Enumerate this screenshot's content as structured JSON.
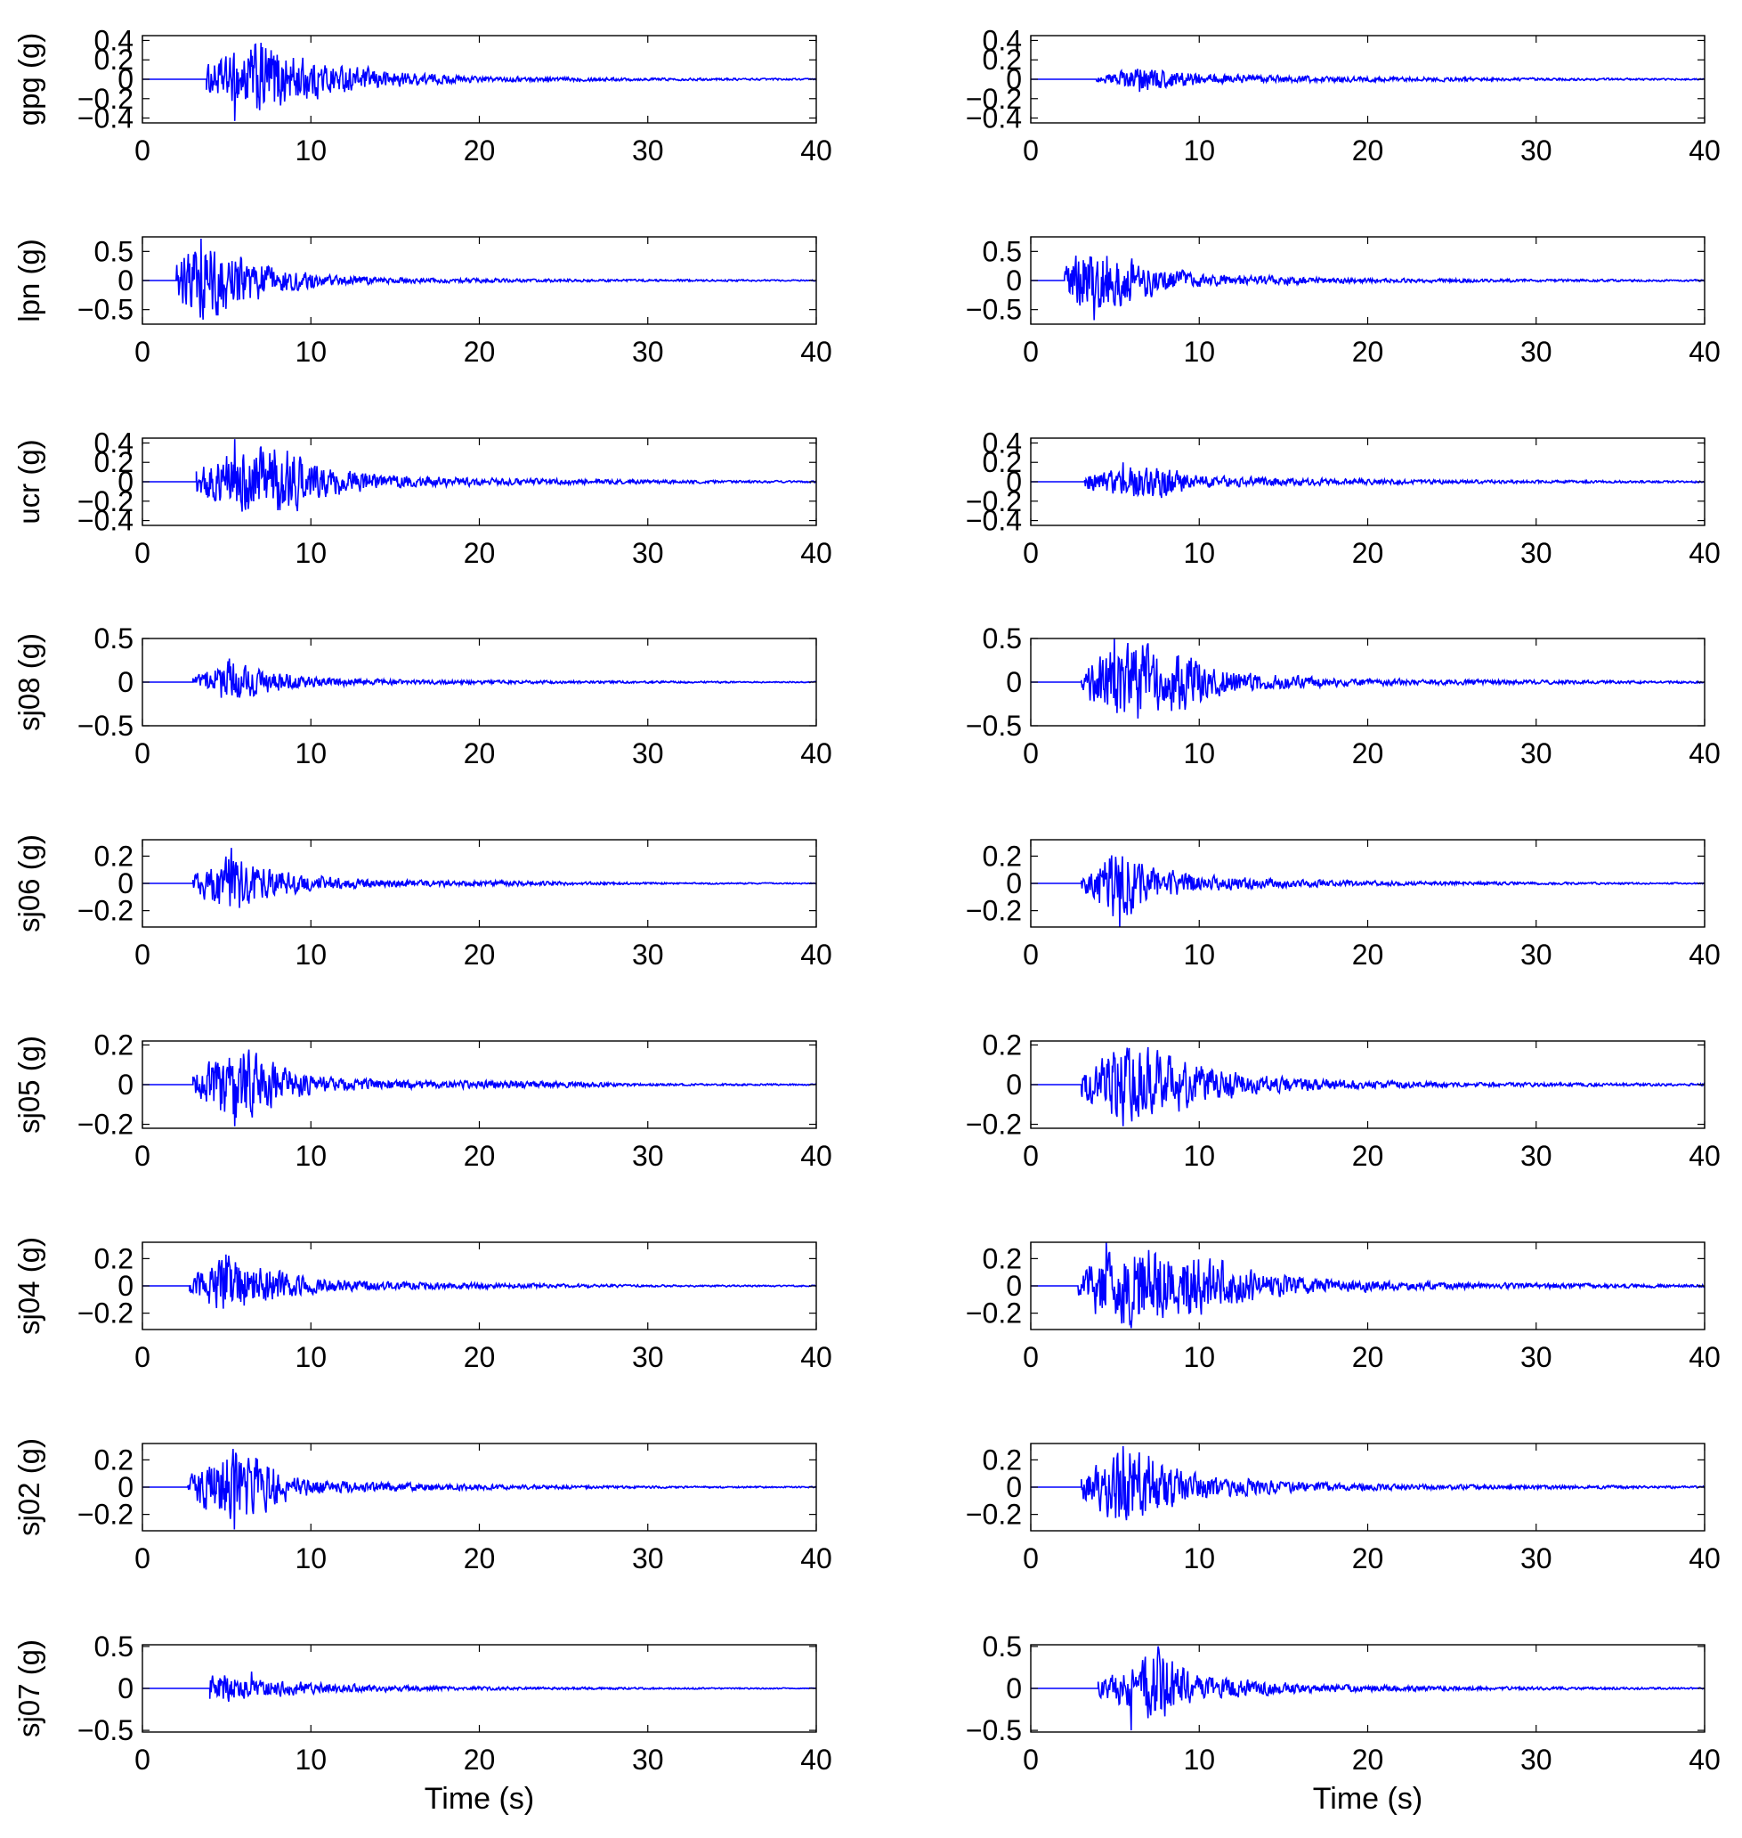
{
  "figure": {
    "trace_color": "#0000ff",
    "axis_color": "#000000",
    "background": "#ffffff"
  },
  "chart_data": [
    {
      "type": "line",
      "row": 0,
      "col": 0,
      "ylabel": "gpg (g)",
      "xlabel": "",
      "xlim": [
        0,
        40
      ],
      "ylim": [
        -0.45,
        0.45
      ],
      "xticks": [
        0,
        10,
        20,
        30,
        40
      ],
      "yticks": [
        -0.4,
        -0.2,
        0,
        0.2,
        0.4
      ],
      "ytick_labels": [
        "−0.4",
        "−0.2",
        "0",
        "0.2",
        "0.4"
      ],
      "onset": 3.8,
      "peak": 0.43,
      "segments": [
        {
          "t": 3.8,
          "a": 0.15
        },
        {
          "t": 5.5,
          "a": 0.28
        },
        {
          "t": 7.0,
          "a": 0.43
        },
        {
          "t": 9.0,
          "a": 0.26
        },
        {
          "t": 12.0,
          "a": 0.14
        },
        {
          "t": 16.0,
          "a": 0.07
        },
        {
          "t": 20.0,
          "a": 0.03
        },
        {
          "t": 30.0,
          "a": 0.015
        },
        {
          "t": 40.0,
          "a": 0.008
        }
      ]
    },
    {
      "type": "line",
      "row": 0,
      "col": 1,
      "ylabel": "",
      "xlabel": "",
      "xlim": [
        0,
        40
      ],
      "ylim": [
        -0.45,
        0.45
      ],
      "xticks": [
        0,
        10,
        20,
        30,
        40
      ],
      "yticks": [
        -0.4,
        -0.2,
        0,
        0.2,
        0.4
      ],
      "ytick_labels": [
        "−0.4",
        "−0.2",
        "0",
        "0.2",
        "0.4"
      ],
      "onset": 3.9,
      "peak": 0.13,
      "segments": [
        {
          "t": 3.9,
          "a": 0.03
        },
        {
          "t": 6.5,
          "a": 0.13
        },
        {
          "t": 9.0,
          "a": 0.08
        },
        {
          "t": 12.0,
          "a": 0.05
        },
        {
          "t": 18.0,
          "a": 0.03
        },
        {
          "t": 30.0,
          "a": 0.015
        },
        {
          "t": 40.0,
          "a": 0.008
        }
      ]
    },
    {
      "type": "line",
      "row": 1,
      "col": 0,
      "ylabel": "lpn (g)",
      "xlabel": "",
      "xlim": [
        0,
        40
      ],
      "ylim": [
        -0.75,
        0.75
      ],
      "xticks": [
        0,
        10,
        20,
        30,
        40
      ],
      "yticks": [
        -0.5,
        0,
        0.5
      ],
      "ytick_labels": [
        "−0.5",
        "0",
        "0.5"
      ],
      "onset": 2.0,
      "peak": 0.72,
      "segments": [
        {
          "t": 2.0,
          "a": 0.42
        },
        {
          "t": 3.5,
          "a": 0.72
        },
        {
          "t": 5.5,
          "a": 0.5
        },
        {
          "t": 8.0,
          "a": 0.22
        },
        {
          "t": 11.0,
          "a": 0.1
        },
        {
          "t": 15.0,
          "a": 0.05
        },
        {
          "t": 25.0,
          "a": 0.025
        },
        {
          "t": 40.0,
          "a": 0.012
        }
      ]
    },
    {
      "type": "line",
      "row": 1,
      "col": 1,
      "ylabel": "",
      "xlabel": "",
      "xlim": [
        0,
        40
      ],
      "ylim": [
        -0.75,
        0.75
      ],
      "xticks": [
        0,
        10,
        20,
        30,
        40
      ],
      "yticks": [
        -0.5,
        0,
        0.5
      ],
      "ytick_labels": [
        "−0.5",
        "0",
        "0.5"
      ],
      "onset": 2.0,
      "peak": 0.68,
      "segments": [
        {
          "t": 2.0,
          "a": 0.3
        },
        {
          "t": 3.8,
          "a": 0.68
        },
        {
          "t": 6.5,
          "a": 0.32
        },
        {
          "t": 10.0,
          "a": 0.12
        },
        {
          "t": 14.0,
          "a": 0.08
        },
        {
          "t": 20.0,
          "a": 0.04
        },
        {
          "t": 30.0,
          "a": 0.025
        },
        {
          "t": 40.0,
          "a": 0.015
        }
      ]
    },
    {
      "type": "line",
      "row": 2,
      "col": 0,
      "ylabel": "ucr (g)",
      "xlabel": "",
      "xlim": [
        0,
        40
      ],
      "ylim": [
        -0.45,
        0.45
      ],
      "xticks": [
        0,
        10,
        20,
        30,
        40
      ],
      "yticks": [
        -0.4,
        -0.2,
        0,
        0.2,
        0.4
      ],
      "ytick_labels": [
        "−0.4",
        "−0.2",
        "0",
        "0.2",
        "0.4"
      ],
      "onset": 3.2,
      "peak": 0.44,
      "segments": [
        {
          "t": 3.2,
          "a": 0.15
        },
        {
          "t": 5.5,
          "a": 0.33
        },
        {
          "t": 7.9,
          "a": 0.44
        },
        {
          "t": 10.0,
          "a": 0.2
        },
        {
          "t": 14.0,
          "a": 0.08
        },
        {
          "t": 20.0,
          "a": 0.04
        },
        {
          "t": 30.0,
          "a": 0.02
        },
        {
          "t": 40.0,
          "a": 0.01
        }
      ]
    },
    {
      "type": "line",
      "row": 2,
      "col": 1,
      "ylabel": "",
      "xlabel": "",
      "xlim": [
        0,
        40
      ],
      "ylim": [
        -0.45,
        0.45
      ],
      "xticks": [
        0,
        10,
        20,
        30,
        40
      ],
      "yticks": [
        -0.4,
        -0.2,
        0,
        0.2,
        0.4
      ],
      "ytick_labels": [
        "−0.4",
        "−0.2",
        "0",
        "0.2",
        "0.4"
      ],
      "onset": 3.2,
      "peak": 0.2,
      "segments": [
        {
          "t": 3.2,
          "a": 0.1
        },
        {
          "t": 5.5,
          "a": 0.14
        },
        {
          "t": 7.0,
          "a": 0.2
        },
        {
          "t": 10.0,
          "a": 0.07
        },
        {
          "t": 15.0,
          "a": 0.04
        },
        {
          "t": 25.0,
          "a": 0.02
        },
        {
          "t": 40.0,
          "a": 0.01
        }
      ]
    },
    {
      "type": "line",
      "row": 3,
      "col": 0,
      "ylabel": "sj08 (g)",
      "xlabel": "",
      "xlim": [
        0,
        40
      ],
      "ylim": [
        -0.5,
        0.5
      ],
      "xticks": [
        0,
        10,
        20,
        30,
        40
      ],
      "yticks": [
        -0.5,
        0,
        0.5
      ],
      "ytick_labels": [
        "−0.5",
        "0",
        "0.5"
      ],
      "onset": 3.0,
      "peak": 0.27,
      "segments": [
        {
          "t": 3.0,
          "a": 0.06
        },
        {
          "t": 5.2,
          "a": 0.27
        },
        {
          "t": 7.0,
          "a": 0.15
        },
        {
          "t": 10.0,
          "a": 0.06
        },
        {
          "t": 15.0,
          "a": 0.03
        },
        {
          "t": 22.0,
          "a": 0.02
        },
        {
          "t": 40.0,
          "a": 0.006
        }
      ]
    },
    {
      "type": "line",
      "row": 3,
      "col": 1,
      "ylabel": "",
      "xlabel": "",
      "xlim": [
        0,
        40
      ],
      "ylim": [
        -0.5,
        0.5
      ],
      "xticks": [
        0,
        10,
        20,
        30,
        40
      ],
      "yticks": [
        -0.5,
        0,
        0.5
      ],
      "ytick_labels": [
        "−0.5",
        "0",
        "0.5"
      ],
      "onset": 3.0,
      "peak": 0.5,
      "segments": [
        {
          "t": 3.0,
          "a": 0.2
        },
        {
          "t": 5.0,
          "a": 0.42
        },
        {
          "t": 6.5,
          "a": 0.5
        },
        {
          "t": 9.0,
          "a": 0.35
        },
        {
          "t": 12.0,
          "a": 0.12
        },
        {
          "t": 18.0,
          "a": 0.05
        },
        {
          "t": 25.0,
          "a": 0.03
        },
        {
          "t": 40.0,
          "a": 0.012
        }
      ]
    },
    {
      "type": "line",
      "row": 4,
      "col": 0,
      "ylabel": "sj06 (g)",
      "xlabel": "",
      "xlim": [
        0,
        40
      ],
      "ylim": [
        -0.32,
        0.32
      ],
      "xticks": [
        0,
        10,
        20,
        30,
        40
      ],
      "yticks": [
        -0.2,
        0,
        0.2
      ],
      "ytick_labels": [
        "−0.2",
        "0",
        "0.2"
      ],
      "onset": 3.0,
      "peak": 0.26,
      "segments": [
        {
          "t": 3.0,
          "a": 0.07
        },
        {
          "t": 5.3,
          "a": 0.26
        },
        {
          "t": 7.0,
          "a": 0.12
        },
        {
          "t": 10.0,
          "a": 0.06
        },
        {
          "t": 14.0,
          "a": 0.03
        },
        {
          "t": 21.0,
          "a": 0.02
        },
        {
          "t": 30.0,
          "a": 0.008
        },
        {
          "t": 40.0,
          "a": 0.004
        }
      ]
    },
    {
      "type": "line",
      "row": 4,
      "col": 1,
      "ylabel": "",
      "xlabel": "",
      "xlim": [
        0,
        40
      ],
      "ylim": [
        -0.32,
        0.32
      ],
      "xticks": [
        0,
        10,
        20,
        30,
        40
      ],
      "yticks": [
        -0.2,
        0,
        0.2
      ],
      "ytick_labels": [
        "−0.2",
        "0",
        "0.2"
      ],
      "onset": 3.0,
      "peak": 0.32,
      "segments": [
        {
          "t": 3.0,
          "a": 0.05
        },
        {
          "t": 5.3,
          "a": 0.32
        },
        {
          "t": 7.0,
          "a": 0.13
        },
        {
          "t": 10.0,
          "a": 0.06
        },
        {
          "t": 15.0,
          "a": 0.03
        },
        {
          "t": 22.0,
          "a": 0.015
        },
        {
          "t": 40.0,
          "a": 0.004
        }
      ]
    },
    {
      "type": "line",
      "row": 5,
      "col": 0,
      "ylabel": "sj05 (g)",
      "xlabel": "",
      "xlim": [
        0,
        40
      ],
      "ylim": [
        -0.22,
        0.22
      ],
      "xticks": [
        0,
        10,
        20,
        30,
        40
      ],
      "yticks": [
        -0.2,
        0,
        0.2
      ],
      "ytick_labels": [
        "−0.2",
        "0",
        "0.2"
      ],
      "onset": 3.0,
      "peak": 0.21,
      "segments": [
        {
          "t": 3.0,
          "a": 0.07
        },
        {
          "t": 5.5,
          "a": 0.21
        },
        {
          "t": 8.0,
          "a": 0.1
        },
        {
          "t": 11.0,
          "a": 0.04
        },
        {
          "t": 16.0,
          "a": 0.02
        },
        {
          "t": 22.0,
          "a": 0.02
        },
        {
          "t": 30.0,
          "a": 0.006
        },
        {
          "t": 40.0,
          "a": 0.004
        }
      ]
    },
    {
      "type": "line",
      "row": 5,
      "col": 1,
      "ylabel": "",
      "xlabel": "",
      "xlim": [
        0,
        40
      ],
      "ylim": [
        -0.22,
        0.22
      ],
      "xticks": [
        0,
        10,
        20,
        30,
        40
      ],
      "yticks": [
        -0.2,
        0,
        0.2
      ],
      "ytick_labels": [
        "−0.2",
        "0",
        "0.2"
      ],
      "onset": 3.0,
      "peak": 0.21,
      "segments": [
        {
          "t": 3.0,
          "a": 0.06
        },
        {
          "t": 5.5,
          "a": 0.21
        },
        {
          "t": 7.0,
          "a": 0.19
        },
        {
          "t": 9.5,
          "a": 0.12
        },
        {
          "t": 13.0,
          "a": 0.05
        },
        {
          "t": 18.0,
          "a": 0.025
        },
        {
          "t": 25.0,
          "a": 0.012
        },
        {
          "t": 40.0,
          "a": 0.006
        }
      ]
    },
    {
      "type": "line",
      "row": 6,
      "col": 0,
      "ylabel": "sj04 (g)",
      "xlabel": "",
      "xlim": [
        0,
        40
      ],
      "ylim": [
        -0.32,
        0.32
      ],
      "xticks": [
        0,
        10,
        20,
        30,
        40
      ],
      "yticks": [
        -0.2,
        0,
        0.2
      ],
      "ytick_labels": [
        "−0.2",
        "0",
        "0.2"
      ],
      "onset": 2.8,
      "peak": 0.23,
      "segments": [
        {
          "t": 2.8,
          "a": 0.06
        },
        {
          "t": 5.0,
          "a": 0.23
        },
        {
          "t": 7.0,
          "a": 0.15
        },
        {
          "t": 10.0,
          "a": 0.06
        },
        {
          "t": 15.0,
          "a": 0.03
        },
        {
          "t": 22.0,
          "a": 0.02
        },
        {
          "t": 30.0,
          "a": 0.008
        },
        {
          "t": 40.0,
          "a": 0.005
        }
      ]
    },
    {
      "type": "line",
      "row": 6,
      "col": 1,
      "ylabel": "",
      "xlabel": "",
      "xlim": [
        0,
        40
      ],
      "ylim": [
        -0.32,
        0.32
      ],
      "xticks": [
        0,
        10,
        20,
        30,
        40
      ],
      "yticks": [
        -0.2,
        0,
        0.2
      ],
      "ytick_labels": [
        "−0.2",
        "0",
        "0.2"
      ],
      "onset": 2.8,
      "peak": 0.32,
      "segments": [
        {
          "t": 2.8,
          "a": 0.12
        },
        {
          "t": 4.5,
          "a": 0.27
        },
        {
          "t": 6.0,
          "a": 0.32
        },
        {
          "t": 8.5,
          "a": 0.25
        },
        {
          "t": 11.0,
          "a": 0.2
        },
        {
          "t": 14.0,
          "a": 0.1
        },
        {
          "t": 18.0,
          "a": 0.05
        },
        {
          "t": 25.0,
          "a": 0.025
        },
        {
          "t": 40.0,
          "a": 0.01
        }
      ]
    },
    {
      "type": "line",
      "row": 7,
      "col": 0,
      "ylabel": "sj02 (g)",
      "xlabel": "",
      "xlim": [
        0,
        40
      ],
      "ylim": [
        -0.32,
        0.32
      ],
      "xticks": [
        0,
        10,
        20,
        30,
        40
      ],
      "yticks": [
        -0.2,
        0,
        0.2
      ],
      "ytick_labels": [
        "−0.2",
        "0",
        "0.2"
      ],
      "onset": 2.7,
      "peak": 0.31,
      "segments": [
        {
          "t": 2.7,
          "a": 0.08
        },
        {
          "t": 5.5,
          "a": 0.31
        },
        {
          "t": 6.5,
          "a": 0.26
        },
        {
          "t": 9.0,
          "a": 0.08
        },
        {
          "t": 13.0,
          "a": 0.04
        },
        {
          "t": 20.0,
          "a": 0.02
        },
        {
          "t": 30.0,
          "a": 0.008
        },
        {
          "t": 40.0,
          "a": 0.005
        }
      ]
    },
    {
      "type": "line",
      "row": 7,
      "col": 1,
      "ylabel": "",
      "xlabel": "",
      "xlim": [
        0,
        40
      ],
      "ylim": [
        -0.32,
        0.32
      ],
      "xticks": [
        0,
        10,
        20,
        30,
        40
      ],
      "yticks": [
        -0.2,
        0,
        0.2
      ],
      "ytick_labels": [
        "−0.2",
        "0",
        "0.2"
      ],
      "onset": 3.0,
      "peak": 0.3,
      "segments": [
        {
          "t": 3.0,
          "a": 0.1
        },
        {
          "t": 5.5,
          "a": 0.3
        },
        {
          "t": 6.7,
          "a": 0.29
        },
        {
          "t": 9.0,
          "a": 0.12
        },
        {
          "t": 12.0,
          "a": 0.08
        },
        {
          "t": 15.0,
          "a": 0.04
        },
        {
          "t": 22.0,
          "a": 0.02
        },
        {
          "t": 40.0,
          "a": 0.008
        }
      ]
    },
    {
      "type": "line",
      "row": 8,
      "col": 0,
      "ylabel": "sj07 (g)",
      "xlabel": "Time (s)",
      "xlim": [
        0,
        40
      ],
      "ylim": [
        -0.52,
        0.52
      ],
      "xticks": [
        0,
        10,
        20,
        30,
        40
      ],
      "yticks": [
        -0.5,
        0,
        0.5
      ],
      "ytick_labels": [
        "−0.5",
        "0",
        "0.5"
      ],
      "onset": 4.0,
      "peak": 0.2,
      "segments": [
        {
          "t": 4.0,
          "a": 0.2
        },
        {
          "t": 6.5,
          "a": 0.12
        },
        {
          "t": 8.0,
          "a": 0.1
        },
        {
          "t": 12.0,
          "a": 0.05
        },
        {
          "t": 18.0,
          "a": 0.025
        },
        {
          "t": 25.0,
          "a": 0.015
        },
        {
          "t": 40.0,
          "a": 0.006
        }
      ]
    },
    {
      "type": "line",
      "row": 8,
      "col": 1,
      "ylabel": "",
      "xlabel": "Time (s)",
      "xlim": [
        0,
        40
      ],
      "ylim": [
        -0.52,
        0.52
      ],
      "xticks": [
        0,
        10,
        20,
        30,
        40
      ],
      "yticks": [
        -0.5,
        0,
        0.5
      ],
      "ytick_labels": [
        "−0.5",
        "0",
        "0.5"
      ],
      "onset": 4.0,
      "peak": 0.5,
      "segments": [
        {
          "t": 4.0,
          "a": 0.12
        },
        {
          "t": 6.0,
          "a": 0.25
        },
        {
          "t": 7.5,
          "a": 0.5
        },
        {
          "t": 9.5,
          "a": 0.18
        },
        {
          "t": 13.0,
          "a": 0.1
        },
        {
          "t": 17.0,
          "a": 0.05
        },
        {
          "t": 25.0,
          "a": 0.025
        },
        {
          "t": 40.0,
          "a": 0.01
        }
      ]
    }
  ]
}
